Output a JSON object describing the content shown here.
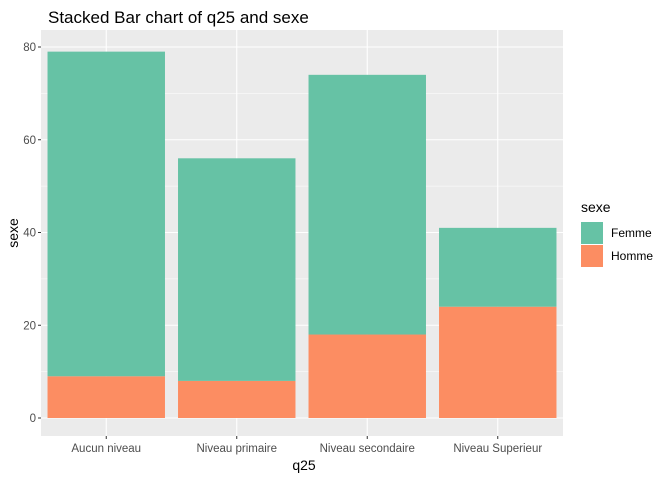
{
  "chart_data": {
    "type": "bar",
    "stacked": true,
    "title": "Stacked Bar chart of q25 and sexe",
    "xlabel": "q25",
    "ylabel": "sexe",
    "categories": [
      "Aucun niveau",
      "Niveau primaire",
      "Niveau secondaire",
      "Niveau Superieur"
    ],
    "series": [
      {
        "name": "Homme",
        "values": [
          9,
          8,
          18,
          24
        ],
        "color": "#FC8D62"
      },
      {
        "name": "Femme",
        "values": [
          70,
          48,
          56,
          17
        ],
        "color": "#66C2A5"
      }
    ],
    "ylim": [
      0,
      80
    ],
    "yticks": [
      0,
      20,
      40,
      60,
      80
    ],
    "grid": true,
    "panel_background": "#EBEBEB",
    "legend": {
      "title": "sexe",
      "position": "right",
      "entries": [
        "Femme",
        "Homme"
      ]
    }
  }
}
